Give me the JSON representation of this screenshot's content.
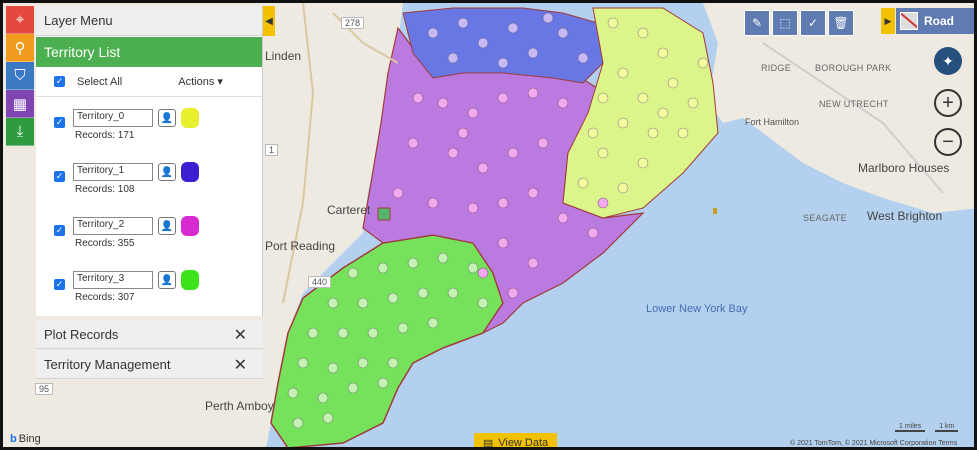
{
  "panel": {
    "layer_menu": "Layer Menu",
    "territory_list": "Territory List",
    "select_all": "Select All",
    "actions": "Actions",
    "territories": [
      {
        "name": "Territory_0",
        "records_label": "Records: 171",
        "color": "#e8ef2c"
      },
      {
        "name": "Territory_1",
        "records_label": "Records: 108",
        "color": "#3c1fd0"
      },
      {
        "name": "Territory_2",
        "records_label": "Records: 355",
        "color": "#d62bd3"
      },
      {
        "name": "Territory_3",
        "records_label": "Records: 307",
        "color": "#3de31a"
      }
    ],
    "plot_records": "Plot Records",
    "territory_management": "Territory Management"
  },
  "map": {
    "road_label": "Road",
    "view_data": "View Data",
    "bing": "Bing",
    "copyright": "© 2021 TomTom, © 2021 Microsoft Corporation  Terms",
    "scale_miles": "1 miles",
    "scale_km": "1 km",
    "labels": {
      "linden": "Linden",
      "carteret": "Carteret",
      "port_reading": "Port Reading",
      "perth_amboy": "Perth Amboy",
      "lower_bay": "Lower New York Bay",
      "west_brighton": "West Brighton",
      "marlboro_houses": "Marlboro Houses",
      "new_utrecht": "NEW UTRECHT",
      "ridge": "RIDGE",
      "borough_park": "BOROUGH PARK",
      "fort_hamilton": "Fort Hamilton",
      "seagate": "SEAGATE",
      "hwy_278": "278",
      "hwy_440": "440",
      "hwy_1": "1",
      "hwy_95": "95"
    }
  },
  "colors": {
    "water": "#b3d1ee",
    "land": "#eeeae2",
    "panel_green": "#4caf50",
    "accent_yellow": "#f2c200",
    "tool_blue": "#5f7bb2"
  }
}
